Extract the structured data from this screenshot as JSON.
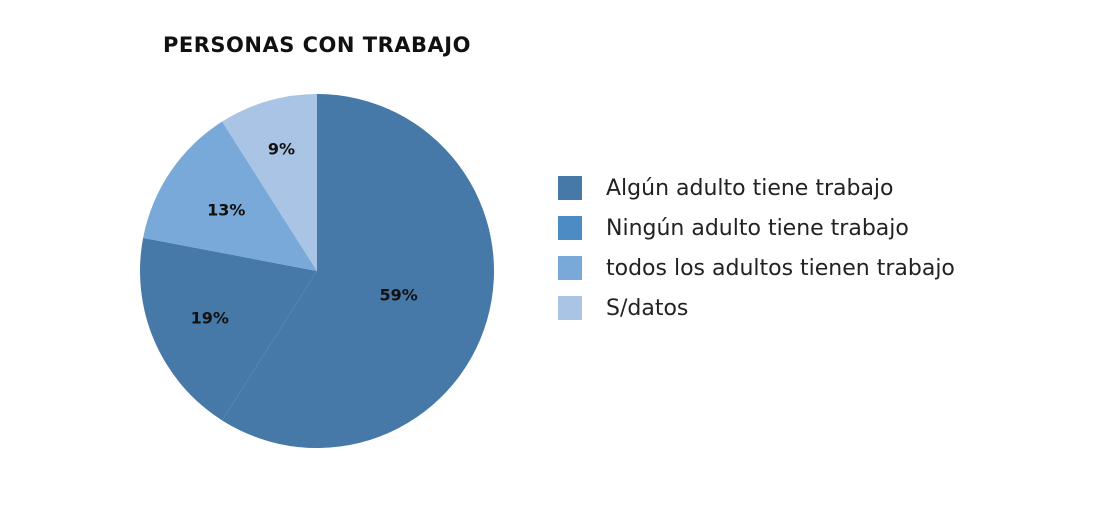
{
  "chart_data": {
    "type": "pie",
    "title": "PERSONAS CON TRABAJO",
    "slices": [
      {
        "name": "Algún adulto tiene trabajo",
        "value": 59,
        "label": "59%",
        "color": "#4679a8"
      },
      {
        "name": "Ningún adulto tiene trabajo",
        "value": 19,
        "label": "19%",
        "color": "#4679a8"
      },
      {
        "name": "todos los adultos tienen trabajo",
        "value": 13,
        "label": "13%",
        "color": "#78a9d9"
      },
      {
        "name": "S/datos",
        "value": 9,
        "label": "9%",
        "color": "#a9c4e4"
      }
    ],
    "legend": [
      {
        "label": "Algún adulto tiene trabajo",
        "color": "#4679a8"
      },
      {
        "label": "Ningún adulto tiene trabajo",
        "color": "#4d8bc4"
      },
      {
        "label": "todos los adultos tienen trabajo",
        "color": "#78a9d9"
      },
      {
        "label": "S/datos",
        "color": "#a9c4e4"
      }
    ],
    "legend_position": "right"
  }
}
